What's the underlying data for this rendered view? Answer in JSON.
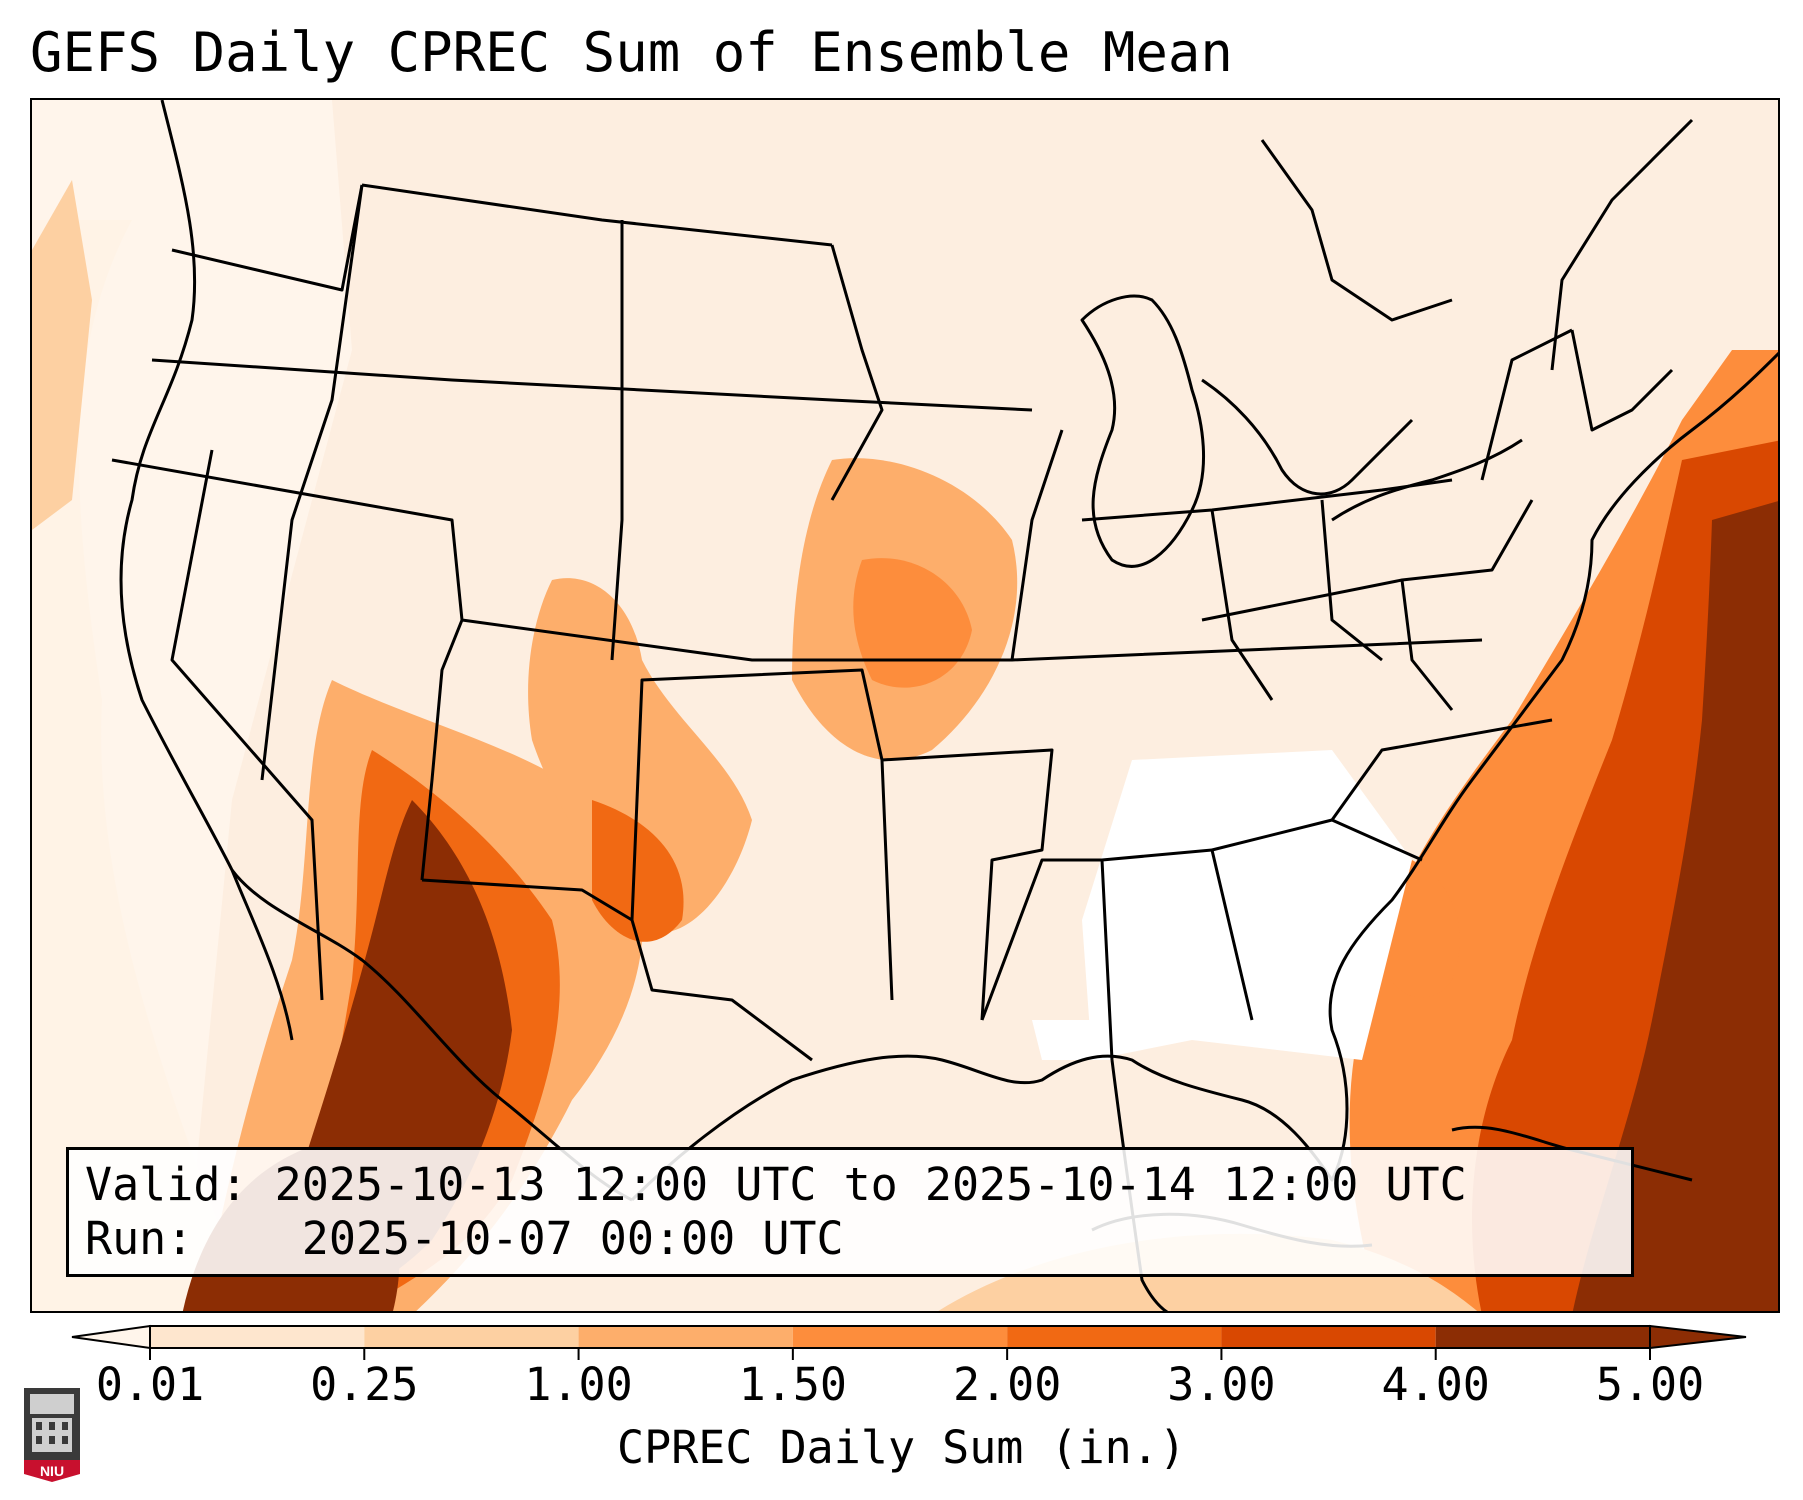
{
  "title": "GEFS Daily CPREC Sum of Ensemble Mean",
  "info": {
    "valid_label": "Valid:",
    "valid_value": "2025-10-13 12:00 UTC to 2025-10-14 12:00 UTC",
    "run_label": "Run:",
    "run_value": "2025-10-07 00:00 UTC"
  },
  "colorbar": {
    "ticks": [
      "0.01",
      "0.25",
      "1.00",
      "1.50",
      "2.00",
      "3.00",
      "4.00",
      "5.00"
    ],
    "colors": [
      "#fff5eb",
      "#fee6ce",
      "#fdd0a2",
      "#fdae6b",
      "#fd8d3c",
      "#f16913",
      "#d94801",
      "#8c2d04"
    ],
    "axis_label": "CPREC Daily Sum (in.)"
  },
  "logo": {
    "text": "NIU",
    "icon": "niu-logo-icon"
  }
}
